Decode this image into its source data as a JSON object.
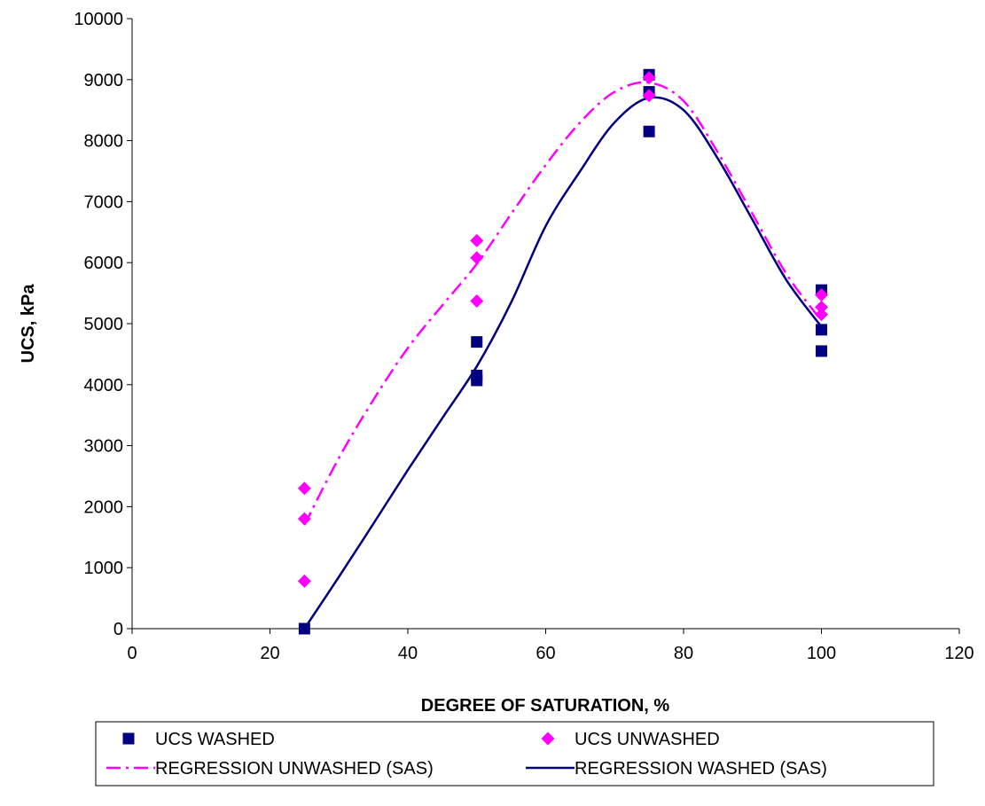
{
  "chart_data": {
    "type": "scatter",
    "title": "",
    "xlabel": "DEGREE OF SATURATION, %",
    "ylabel": "UCS, kPa",
    "xlim": [
      0,
      120
    ],
    "ylim": [
      0,
      10000
    ],
    "x_ticks": [
      0,
      20,
      40,
      60,
      80,
      100,
      120
    ],
    "y_ticks": [
      0,
      1000,
      2000,
      3000,
      4000,
      5000,
      6000,
      7000,
      8000,
      9000,
      10000
    ],
    "grid": false,
    "legend_position": "bottom",
    "series": [
      {
        "name": "UCS WASHED",
        "kind": "points",
        "marker": "square",
        "color": "#000080",
        "points": [
          [
            25,
            0
          ],
          [
            50,
            4700
          ],
          [
            50,
            4150
          ],
          [
            50,
            4070
          ],
          [
            75,
            9080
          ],
          [
            75,
            8800
          ],
          [
            75,
            8150
          ],
          [
            100,
            5550
          ],
          [
            100,
            4900
          ],
          [
            100,
            4550
          ]
        ]
      },
      {
        "name": "UCS UNWASHED",
        "kind": "points",
        "marker": "diamond",
        "color": "#FF00FF",
        "points": [
          [
            25,
            2300
          ],
          [
            25,
            1800
          ],
          [
            25,
            780
          ],
          [
            50,
            6360
          ],
          [
            50,
            6080
          ],
          [
            50,
            5370
          ],
          [
            75,
            9030
          ],
          [
            75,
            8740
          ],
          [
            100,
            5470
          ],
          [
            100,
            5270
          ],
          [
            100,
            5150
          ]
        ]
      },
      {
        "name": "REGRESSION UNWASHED (SAS)",
        "kind": "line",
        "dash": "dash-dot",
        "color": "#FF00FF",
        "points": [
          [
            25,
            1700
          ],
          [
            30,
            2800
          ],
          [
            35,
            3750
          ],
          [
            40,
            4600
          ],
          [
            45,
            5300
          ],
          [
            50,
            5980
          ],
          [
            55,
            6800
          ],
          [
            60,
            7600
          ],
          [
            65,
            8300
          ],
          [
            70,
            8800
          ],
          [
            75,
            8950
          ],
          [
            80,
            8650
          ],
          [
            85,
            7800
          ],
          [
            90,
            6800
          ],
          [
            95,
            5800
          ],
          [
            100,
            5050
          ]
        ]
      },
      {
        "name": "REGRESSION WASHED (SAS)",
        "kind": "line",
        "dash": "solid",
        "color": "#000080",
        "points": [
          [
            25,
            0
          ],
          [
            30,
            850
          ],
          [
            35,
            1720
          ],
          [
            40,
            2600
          ],
          [
            45,
            3450
          ],
          [
            50,
            4300
          ],
          [
            55,
            5350
          ],
          [
            60,
            6600
          ],
          [
            65,
            7500
          ],
          [
            70,
            8300
          ],
          [
            75,
            8700
          ],
          [
            80,
            8500
          ],
          [
            85,
            7700
          ],
          [
            90,
            6700
          ],
          [
            95,
            5700
          ],
          [
            100,
            4950
          ]
        ]
      }
    ]
  }
}
